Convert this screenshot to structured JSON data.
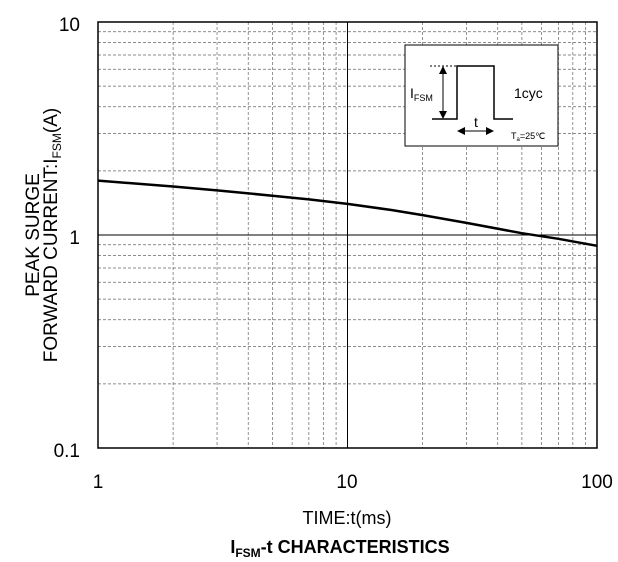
{
  "chart_data": {
    "type": "line",
    "title": "I",
    "title_sub": "FSM",
    "title_rest": "-t CHARACTERISTICS",
    "xlabel": "TIME:t(ms)",
    "ylabel_line1": "PEAK SURGE",
    "ylabel_line2_main": "FORWARD CURRENT:I",
    "ylabel_line2_sub": "FSM",
    "ylabel_line2_end": "(A)",
    "x_scale": "log",
    "y_scale": "log",
    "xlim": [
      1,
      100
    ],
    "ylim": [
      0.1,
      10
    ],
    "x_ticks": [
      "1",
      "10",
      "100"
    ],
    "y_ticks": [
      "0.1",
      "1",
      "10"
    ],
    "grid": true,
    "series": [
      {
        "x": [
          1,
          2,
          3,
          5,
          7,
          10,
          15,
          20,
          30,
          50,
          70,
          100
        ],
        "y": [
          1.8,
          1.69,
          1.62,
          1.53,
          1.47,
          1.4,
          1.31,
          1.24,
          1.14,
          1.02,
          0.96,
          0.89
        ],
        "color": "#000000"
      }
    ],
    "inset": {
      "i_label_main": "I",
      "i_label_sub": "FSM",
      "t_label": "t",
      "cyc_label": "1cyc",
      "temp_main": "T",
      "temp_sub": "a",
      "temp_rest": "=25℃"
    }
  }
}
